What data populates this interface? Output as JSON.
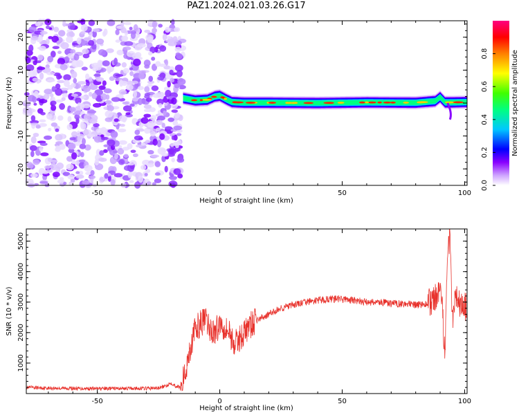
{
  "title": "PAZ1.2024.021.03.26.G17",
  "chart_data": [
    {
      "type": "heatmap",
      "xlabel": "Height of straight line (km)",
      "ylabel": "Frequency (Hz)",
      "xlim": [
        -79,
        101
      ],
      "ylim": [
        -25,
        25
      ],
      "x_ticks": [
        -50,
        0,
        50,
        100
      ],
      "y_ticks": [
        -20,
        -10,
        0,
        10,
        20
      ],
      "colorbar": {
        "label": "Normalized spectral amplitude",
        "range": [
          0,
          1
        ],
        "ticks": [
          0.0,
          0.2,
          0.4,
          0.6,
          0.8
        ],
        "colormap": [
          "#ffffff",
          "#8a00ff",
          "#0000ff",
          "#00ffff",
          "#00ff00",
          "#ffff00",
          "#ff8000",
          "#ff0000",
          "#ff0080"
        ]
      },
      "noise_region_x": [
        -79,
        -15
      ],
      "ridge": {
        "x": [
          -15,
          -10,
          -5,
          -2,
          0,
          3,
          5,
          10,
          20,
          40,
          60,
          80,
          88,
          90,
          92,
          95,
          101
        ],
        "frequency": [
          1.5,
          0.8,
          1.0,
          2.0,
          2.2,
          1.0,
          0.3,
          0.1,
          0.1,
          0.0,
          0.2,
          0.1,
          0.6,
          1.8,
          0.2,
          0.2,
          0.3
        ]
      }
    },
    {
      "type": "line",
      "xlabel": "Height of straight line (km)",
      "ylabel": "SNR (10 * v/v)",
      "xlim": [
        -79,
        101
      ],
      "ylim": [
        0,
        5400
      ],
      "x_ticks": [
        -50,
        0,
        50,
        100
      ],
      "y_ticks": [
        1000,
        2000,
        3000,
        4000,
        5000
      ],
      "color": "#e8322c",
      "series": [
        {
          "x": [
            -79,
            -70,
            -60,
            -50,
            -40,
            -30,
            -25,
            -22,
            -20,
            -18,
            -16,
            -14,
            -13,
            -12,
            -11,
            -10,
            -8,
            -6,
            -4,
            -2,
            0,
            2,
            4,
            6,
            8,
            10,
            12,
            15,
            20,
            25,
            30,
            35,
            40,
            45,
            50,
            55,
            60,
            65,
            70,
            75,
            80,
            85,
            88,
            90,
            91,
            92,
            93,
            94,
            95,
            96,
            98,
            101
          ],
          "values": [
            200,
            180,
            170,
            160,
            170,
            170,
            180,
            250,
            350,
            250,
            200,
            700,
            1200,
            1500,
            1800,
            2100,
            2300,
            2400,
            2100,
            2000,
            2300,
            2200,
            2000,
            1600,
            1800,
            2000,
            2200,
            2400,
            2600,
            2800,
            2900,
            3000,
            3050,
            3100,
            3100,
            3050,
            3000,
            3000,
            2950,
            2950,
            2900,
            2950,
            3100,
            3200,
            2600,
            1200,
            4600,
            5300,
            2400,
            3300,
            2900,
            2800
          ]
        }
      ]
    }
  ]
}
